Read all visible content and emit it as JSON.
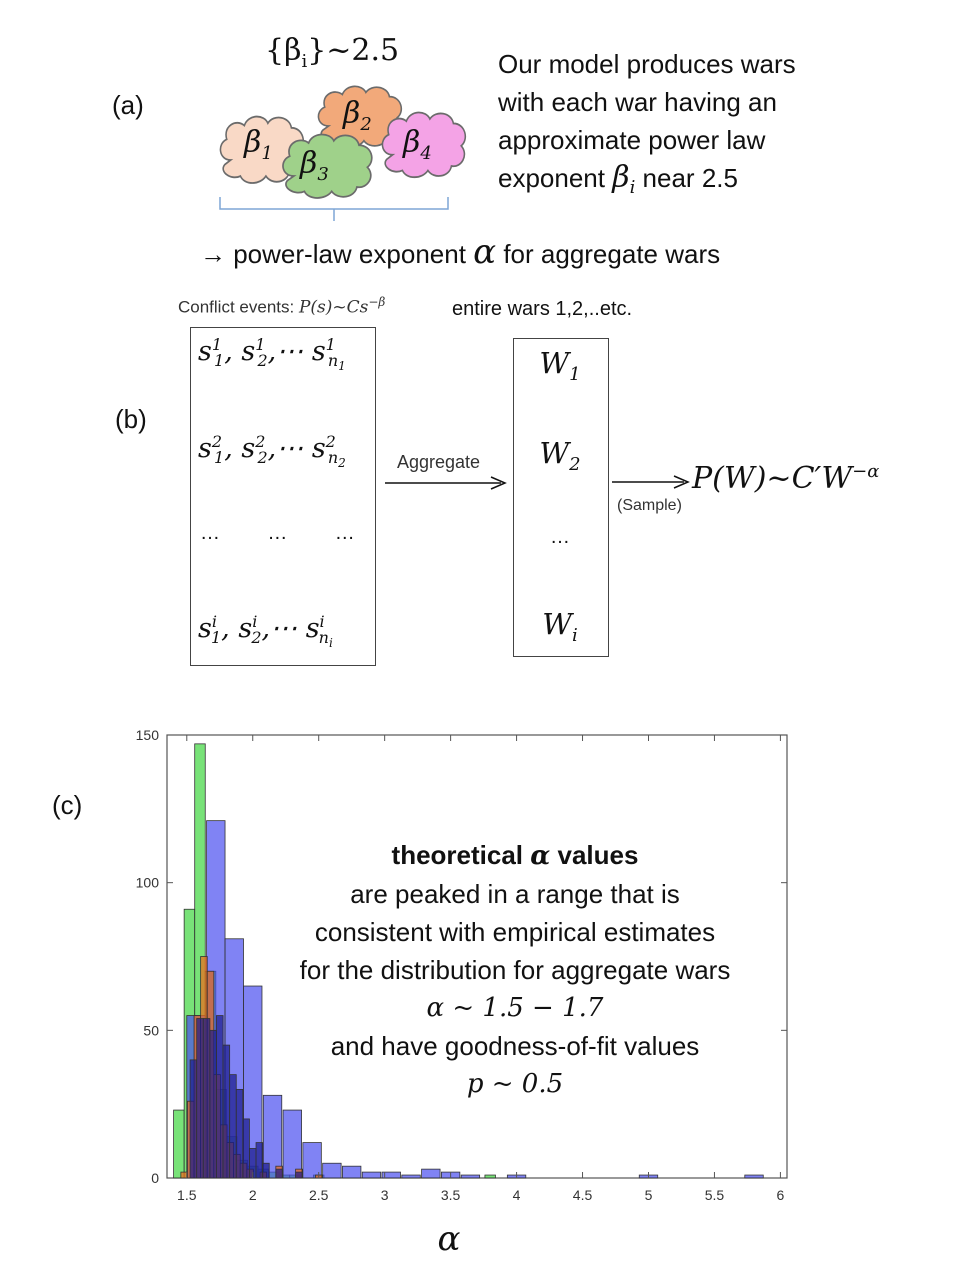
{
  "panel_a": {
    "label": "(a)",
    "set_label": "{β",
    "set_sub": "i",
    "set_tail": "}~2.5",
    "clouds": [
      {
        "name": "β",
        "sub": "1",
        "color": "#f9d9c6"
      },
      {
        "name": "β",
        "sub": "2",
        "color": "#f2a97a"
      },
      {
        "name": "β",
        "sub": "3",
        "color": "#9fd18a"
      },
      {
        "name": "β",
        "sub": "4",
        "color": "#f4a3e6"
      }
    ],
    "desc_lines": [
      "Our model produces wars",
      "with each war having an",
      "approximate power law"
    ],
    "desc_last_prefix": "exponent ",
    "desc_beta": "β",
    "desc_beta_sub": "i",
    "desc_last_suffix": " near 2.5",
    "arrow_text_prefix": "→ power-law exponent ",
    "arrow_alpha": "α",
    "arrow_text_suffix": " for aggregate wars"
  },
  "panel_b": {
    "label": "(b)",
    "conflict_title_prefix": "Conflict events: ",
    "conflict_formula": "P(s)~Cs",
    "conflict_exp": "−β",
    "wars_title": "entire wars 1,2,..etc.",
    "rows": [
      {
        "a": "s",
        "a_sup": "1",
        "a_sub": "1",
        "b": "s",
        "b_sup": "1",
        "b_sub": "2",
        "dots": ",⋯ ",
        "c": "s",
        "c_sup": "1",
        "c_sub": "n",
        "c_subsub": "1"
      },
      {
        "a": "s",
        "a_sup": "2",
        "a_sub": "1",
        "b": "s",
        "b_sup": "2",
        "b_sub": "2",
        "dots": ",⋯ ",
        "c": "s",
        "c_sup": "2",
        "c_sub": "n",
        "c_subsub": "2"
      },
      {
        "a": "s",
        "a_sup": "i",
        "a_sub": "1",
        "b": "s",
        "b_sup": "i",
        "b_sub": "2",
        "dots": ",⋯ ",
        "c": "s",
        "c_sup": "i",
        "c_sub": "n",
        "c_subsub": "i"
      }
    ],
    "ellipsis": "…",
    "aggregate_label": "Aggregate",
    "wars": [
      {
        "name": "W",
        "sub": "1"
      },
      {
        "name": "W",
        "sub": "2"
      },
      {
        "name": "…",
        "sub": ""
      },
      {
        "name": "W",
        "sub": "i"
      }
    ],
    "sample_label": "(Sample)",
    "result_formula": "P(W)~C′W",
    "result_exp": "−α"
  },
  "panel_c": {
    "label": "(c)",
    "annotation": {
      "title": "theoretical α values",
      "lines": [
        "are peaked in a range that is",
        "consistent with empirical estimates",
        "for the distribution for aggregate wars",
        "α ~ 1.5 − 1.7",
        "and have goodness-of-fit values",
        "p ~ 0.5"
      ]
    }
  },
  "chart_data": {
    "type": "bar",
    "xlabel": "α",
    "ylabel": "",
    "title": "",
    "xlim": [
      1.35,
      6.05
    ],
    "ylim": [
      0,
      150
    ],
    "xticks": [
      1.5,
      2,
      2.5,
      3,
      3.5,
      4,
      4.5,
      5,
      5.5,
      6
    ],
    "yticks": [
      0,
      50,
      100,
      150
    ],
    "series": [
      {
        "color": "#3fd63f",
        "bin_width": 0.08,
        "x": [
          1.44,
          1.52,
          1.6,
          1.68,
          1.76,
          1.84,
          1.92,
          2.0,
          2.08,
          2.16,
          2.24,
          2.32,
          2.5,
          3.8
        ],
        "values": [
          23,
          91,
          147,
          70,
          30,
          14,
          6,
          4,
          3,
          2,
          1,
          1,
          1,
          1
        ]
      },
      {
        "color": "#4a4ff0",
        "bin_width": 0.14,
        "x": [
          1.57,
          1.72,
          1.86,
          2.0,
          2.15,
          2.3,
          2.45,
          2.6,
          2.75,
          2.9,
          3.05,
          3.2,
          3.35,
          3.5,
          3.65,
          4.0,
          5.0,
          5.8
        ],
        "values": [
          55,
          121,
          81,
          65,
          28,
          23,
          12,
          5,
          4,
          2,
          2,
          1,
          3,
          2,
          1,
          1,
          1,
          1
        ]
      },
      {
        "color": "#f06a1a",
        "bin_width": 0.05,
        "x": [
          1.48,
          1.53,
          1.58,
          1.63,
          1.68,
          1.73,
          1.78,
          1.83,
          1.88,
          1.93,
          1.98,
          2.08,
          2.2,
          2.35,
          2.5
        ],
        "values": [
          2,
          26,
          55,
          75,
          70,
          35,
          18,
          12,
          8,
          5,
          3,
          2,
          4,
          3,
          1
        ]
      },
      {
        "color": "#1a1a8a",
        "bin_width": 0.05,
        "x": [
          1.55,
          1.6,
          1.65,
          1.7,
          1.75,
          1.8,
          1.85,
          1.9,
          1.95,
          2.0,
          2.05,
          2.1,
          2.2,
          2.35
        ],
        "values": [
          40,
          54,
          54,
          50,
          55,
          45,
          35,
          30,
          20,
          10,
          12,
          5,
          3,
          2
        ]
      }
    ]
  }
}
